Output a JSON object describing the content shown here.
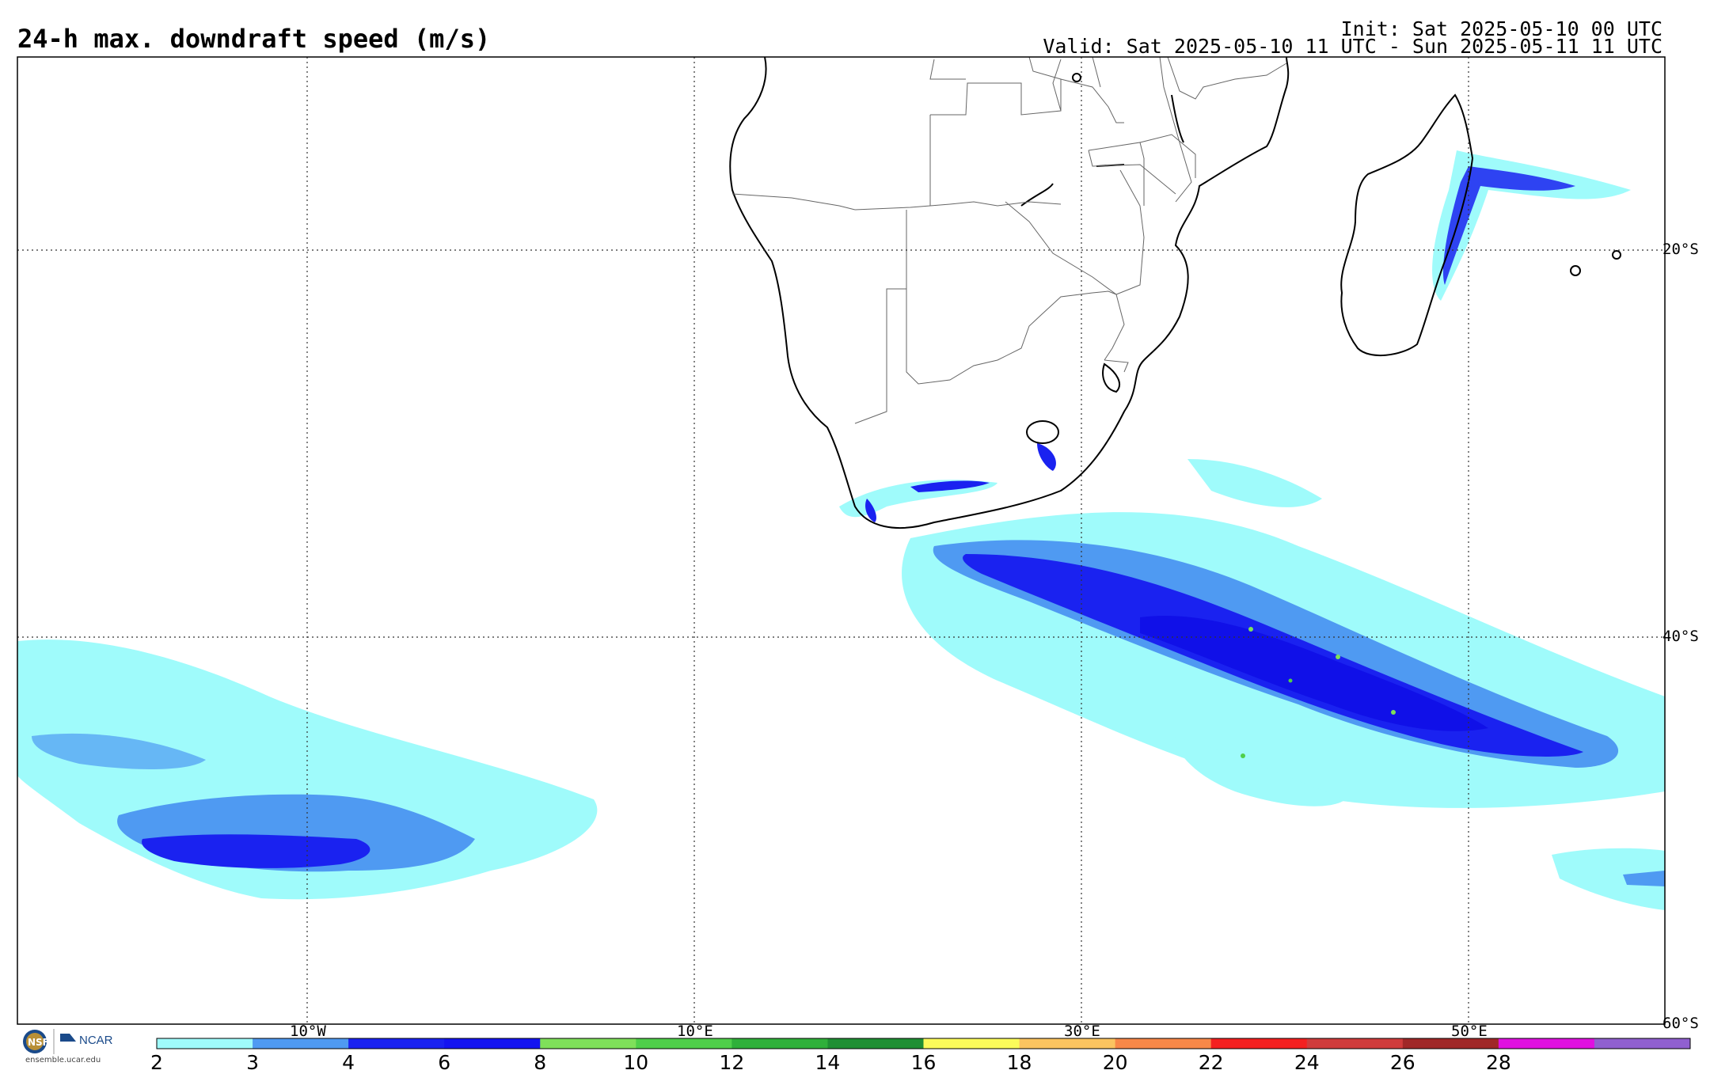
{
  "title": "24-h max. downdraft speed (m/s)",
  "init_line": "Init: Sat 2025-05-10 00 UTC",
  "valid_line": "Valid: Sat 2025-05-10 11 UTC - Sun 2025-05-11 11 UTC",
  "map": {
    "lon_gridlines": [
      "10°W",
      "10°E",
      "30°E",
      "50°E"
    ],
    "lat_gridlines": [
      "20°S",
      "40°S",
      "60°S"
    ],
    "gridline_style": "dotted"
  },
  "colorbar": {
    "ticks": [
      "2",
      "3",
      "4",
      "6",
      "8",
      "10",
      "12",
      "14",
      "16",
      "18",
      "20",
      "22",
      "24",
      "26",
      "28"
    ],
    "colors": [
      "#9ffbfb",
      "#4f9af2",
      "#1a22f0",
      "#1414f0",
      "#7fe05a",
      "#4fcf4a",
      "#2fb03a",
      "#1f8f33",
      "#fbfb5a",
      "#fbc460",
      "#f88848",
      "#f42020",
      "#d03c3c",
      "#a02828",
      "#e010e0",
      "#9060d0"
    ]
  },
  "footer": {
    "logo_text": "NCAR",
    "website": "ensemble.ucar.edu"
  }
}
